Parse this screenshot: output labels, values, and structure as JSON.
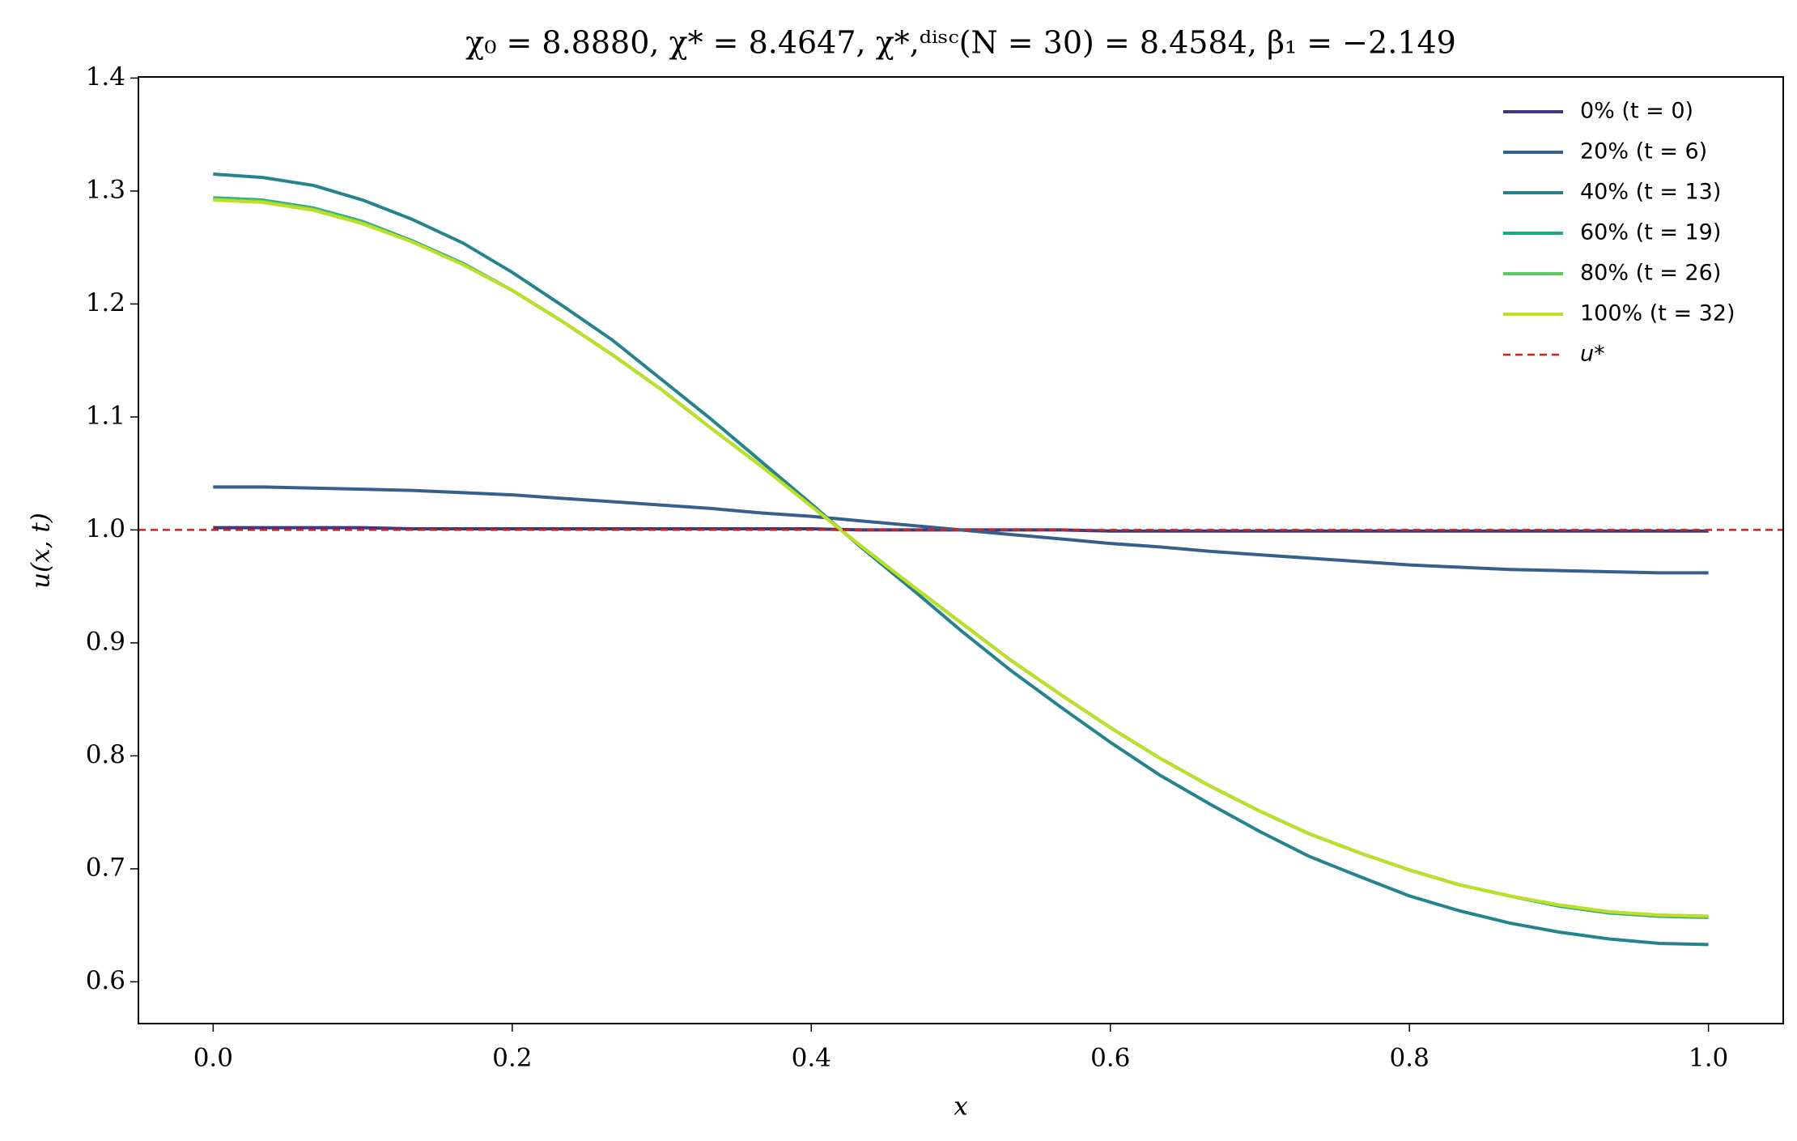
{
  "chart_data": {
    "type": "line",
    "title": "χ₀ = 8.8880,  χ* = 8.4647,  χ*,ᵈⁱˢᶜ(N = 30) = 8.4584,  β₁ = −2.149",
    "x_label": "x",
    "y_label": "u(x, t)",
    "x": [
      0,
      0.033,
      0.067,
      0.1,
      0.133,
      0.167,
      0.2,
      0.233,
      0.267,
      0.3,
      0.333,
      0.367,
      0.4,
      0.433,
      0.467,
      0.5,
      0.533,
      0.567,
      0.6,
      0.633,
      0.667,
      0.7,
      0.733,
      0.767,
      0.8,
      0.833,
      0.867,
      0.9,
      0.933,
      0.967,
      1
    ],
    "series": [
      {
        "name": "0% (t = 0)",
        "color": "#3e3a7a",
        "values": [
          1.002,
          1.002,
          1.002,
          1.002,
          1.001,
          1.001,
          1.001,
          1.001,
          1.001,
          1.001,
          1.001,
          1.001,
          1.001,
          1.0,
          1.0,
          1.0,
          1.0,
          1.0,
          0.999,
          0.999,
          0.999,
          0.999,
          0.999,
          0.999,
          0.999,
          0.999,
          0.999,
          0.999,
          0.999,
          0.999,
          0.999
        ]
      },
      {
        "name": "20% (t = 6)",
        "color": "#355f8d",
        "values": [
          1.038,
          1.038,
          1.037,
          1.036,
          1.035,
          1.033,
          1.031,
          1.028,
          1.025,
          1.022,
          1.019,
          1.015,
          1.012,
          1.008,
          1.004,
          1.0,
          0.996,
          0.992,
          0.988,
          0.985,
          0.981,
          0.978,
          0.975,
          0.972,
          0.969,
          0.967,
          0.965,
          0.964,
          0.963,
          0.962,
          0.962
        ]
      },
      {
        "name": "40% (t = 13)",
        "color": "#25838e",
        "values": [
          1.315,
          1.312,
          1.305,
          1.292,
          1.275,
          1.254,
          1.228,
          1.199,
          1.168,
          1.133,
          1.098,
          1.06,
          1.023,
          0.985,
          0.948,
          0.911,
          0.876,
          0.843,
          0.812,
          0.783,
          0.757,
          0.733,
          0.711,
          0.693,
          0.676,
          0.663,
          0.652,
          0.644,
          0.638,
          0.634,
          0.633
        ]
      },
      {
        "name": "60% (t = 19)",
        "color": "#22a884",
        "values": [
          1.294,
          1.292,
          1.285,
          1.273,
          1.256,
          1.236,
          1.212,
          1.185,
          1.155,
          1.124,
          1.09,
          1.056,
          1.021,
          0.986,
          0.951,
          0.918,
          0.885,
          0.854,
          0.825,
          0.798,
          0.773,
          0.751,
          0.731,
          0.714,
          0.699,
          0.686,
          0.676,
          0.667,
          0.661,
          0.658,
          0.657
        ]
      },
      {
        "name": "80% (t = 26)",
        "color": "#5ec962",
        "values": [
          1.293,
          1.291,
          1.284,
          1.272,
          1.255,
          1.235,
          1.212,
          1.185,
          1.155,
          1.124,
          1.09,
          1.056,
          1.021,
          0.986,
          0.951,
          0.918,
          0.885,
          0.854,
          0.825,
          0.798,
          0.773,
          0.751,
          0.731,
          0.714,
          0.699,
          0.686,
          0.676,
          0.668,
          0.662,
          0.659,
          0.658
        ]
      },
      {
        "name": "100% (t = 32)",
        "color": "#bddf26",
        "values": [
          1.292,
          1.29,
          1.283,
          1.271,
          1.255,
          1.235,
          1.212,
          1.185,
          1.155,
          1.124,
          1.09,
          1.056,
          1.021,
          0.986,
          0.951,
          0.918,
          0.885,
          0.854,
          0.825,
          0.798,
          0.773,
          0.751,
          0.731,
          0.714,
          0.699,
          0.686,
          0.676,
          0.668,
          0.662,
          0.659,
          0.658
        ]
      }
    ],
    "reference_line": {
      "name": "u*",
      "value": 1,
      "color": "#e31a1c"
    },
    "xlim": [
      -0.05,
      1.05
    ],
    "xticks": [
      {
        "value": 0,
        "label": "0.0"
      },
      0.2,
      0.4,
      0.6,
      0.8,
      {
        "value": 1,
        "label": "1.0"
      }
    ],
    "ylim": [
      0.563,
      1.401
    ],
    "yticks": [
      0.6,
      0.7,
      0.8,
      0.9,
      {
        "value": 1,
        "label": "1.0"
      },
      1.1,
      1.2,
      1.3,
      1.4
    ],
    "grid": false,
    "legend": "upper right"
  }
}
